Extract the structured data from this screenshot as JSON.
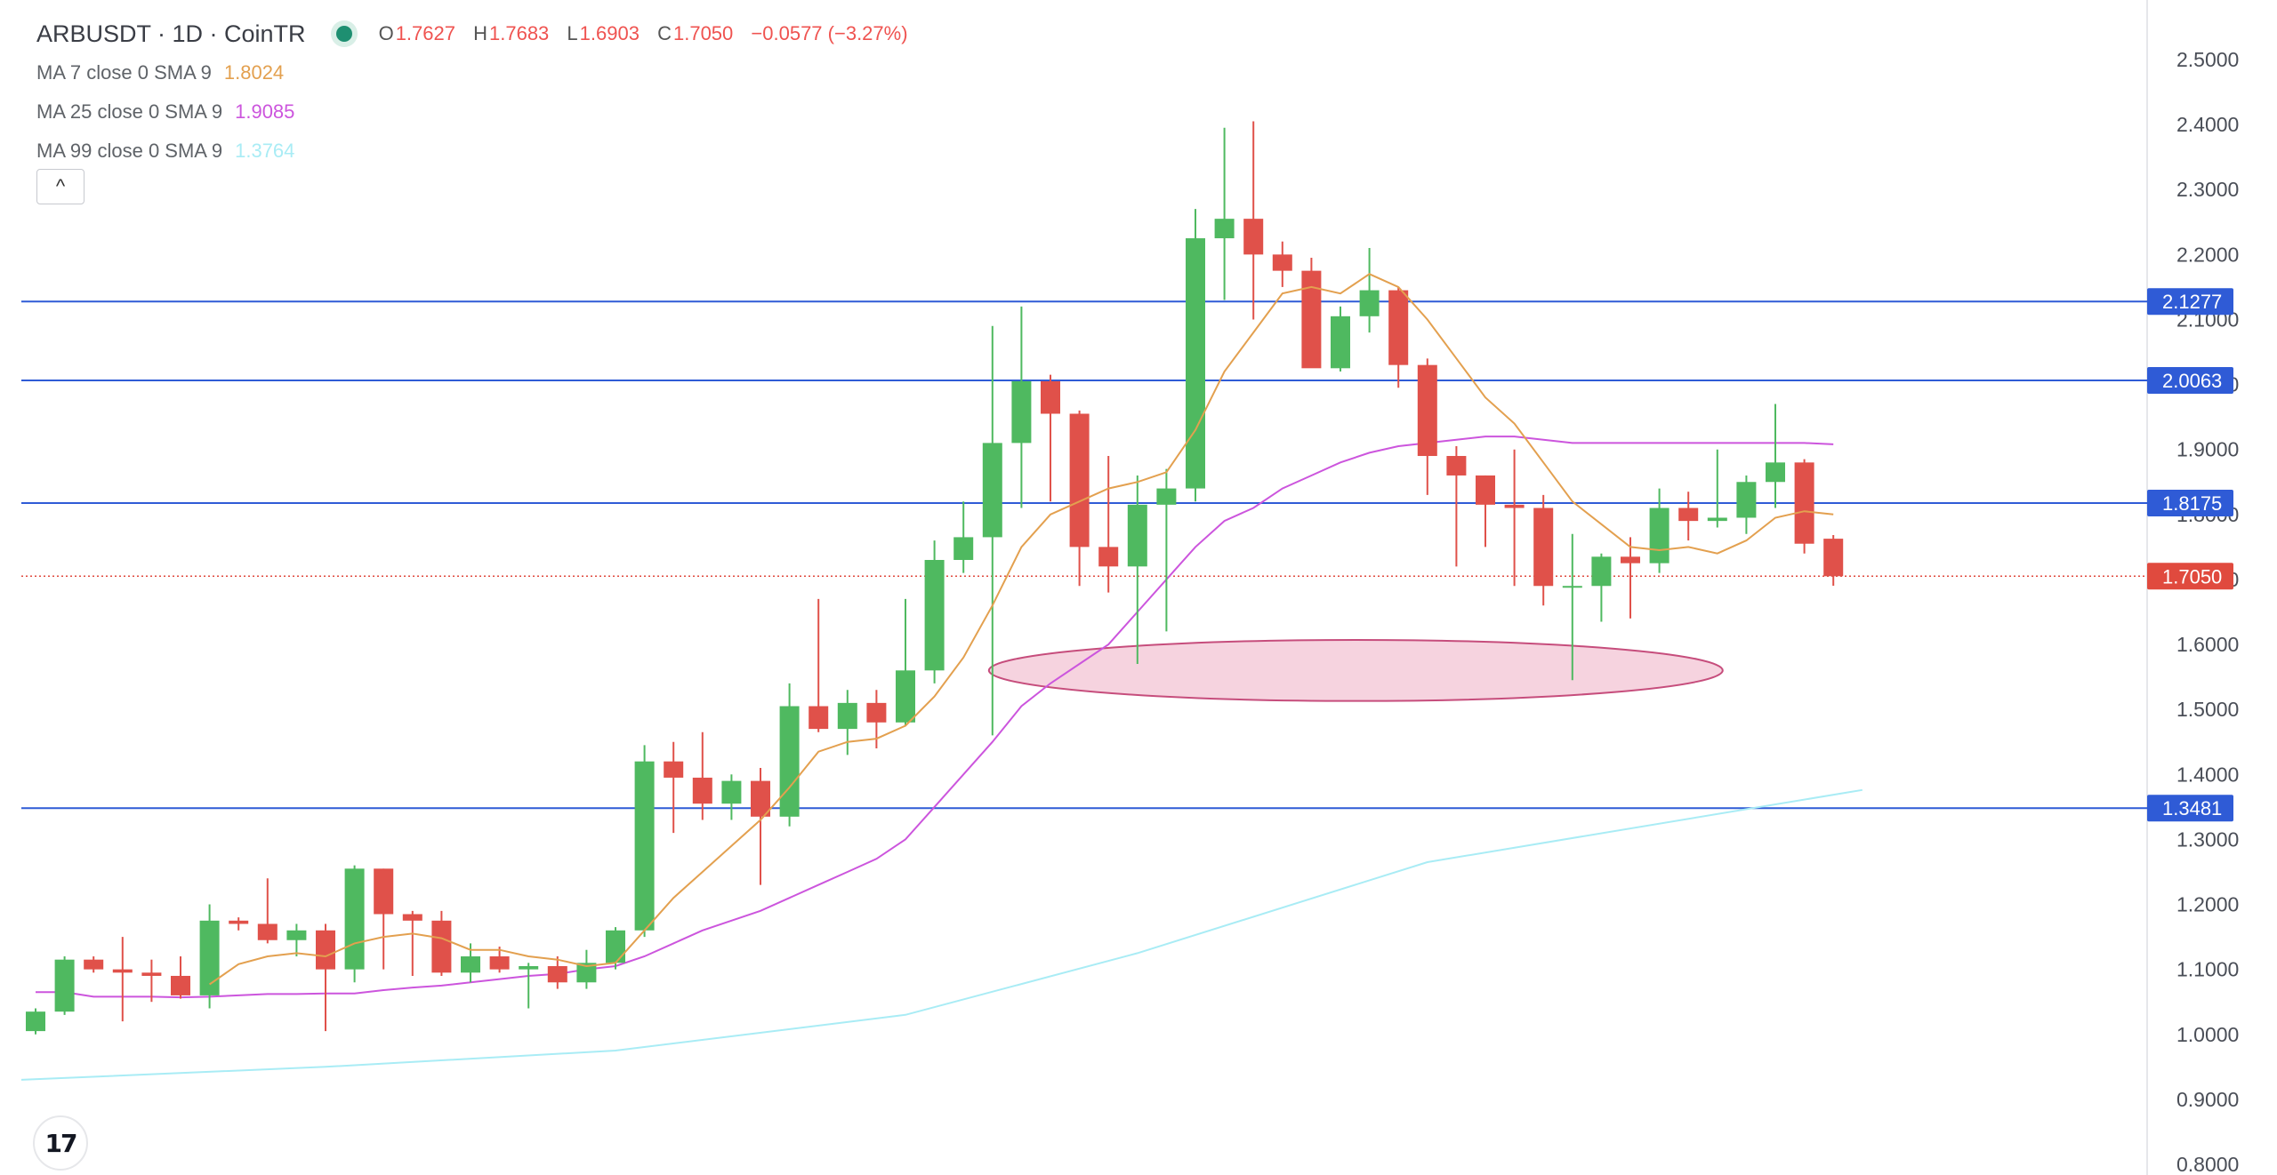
{
  "header": {
    "symbol": "ARBUSDT · 1D · CoinTR",
    "ohlc": {
      "o": "1.7627",
      "h": "1.7683",
      "l": "1.6903",
      "c": "1.7050",
      "change": "−0.0577 (−3.27%)"
    }
  },
  "indicators": [
    {
      "label": "MA 7 close 0 SMA 9",
      "value": "1.8024",
      "color": "#e3a04f"
    },
    {
      "label": "MA 25 close 0 SMA 9",
      "value": "1.9085",
      "color": "#cc55dd"
    },
    {
      "label": "MA 99 close 0 SMA 9",
      "value": "1.3764",
      "color": "#a9ecf5"
    }
  ],
  "colors": {
    "up": "#4fb960",
    "down": "#e0514a",
    "hline": "#2f5bd6",
    "price": "#e04a3e",
    "ellipse_fill": "#f6d3df",
    "ellipse_stroke": "#c64d7c"
  },
  "icons": {
    "collapse": "chevron-up-icon",
    "logo": "tradingview-logo-icon"
  },
  "collapse_glyph": "^",
  "logo_text": "17",
  "chart_data": {
    "type": "candlestick",
    "y_range": [
      0.8,
      2.5
    ],
    "y_ticks": [
      "2.5000",
      "2.4000",
      "2.3000",
      "2.2000",
      "2.1000",
      "2.0000",
      "1.9000",
      "1.8000",
      "1.7000",
      "1.6000",
      "1.5000",
      "1.4000",
      "1.3000",
      "1.2000",
      "1.1000",
      "1.0000",
      "0.9000",
      "0.8000"
    ],
    "candles": [
      [
        1.005,
        1.04,
        1.0,
        1.035
      ],
      [
        1.035,
        1.12,
        1.03,
        1.115
      ],
      [
        1.115,
        1.12,
        1.095,
        1.1
      ],
      [
        1.1,
        1.15,
        1.02,
        1.095
      ],
      [
        1.095,
        1.115,
        1.05,
        1.09
      ],
      [
        1.09,
        1.12,
        1.055,
        1.06
      ],
      [
        1.06,
        1.2,
        1.04,
        1.175
      ],
      [
        1.175,
        1.18,
        1.16,
        1.17
      ],
      [
        1.17,
        1.24,
        1.14,
        1.145
      ],
      [
        1.145,
        1.17,
        1.12,
        1.16
      ],
      [
        1.16,
        1.17,
        1.005,
        1.1
      ],
      [
        1.1,
        1.26,
        1.08,
        1.255
      ],
      [
        1.255,
        1.255,
        1.1,
        1.185
      ],
      [
        1.185,
        1.19,
        1.09,
        1.175
      ],
      [
        1.175,
        1.19,
        1.09,
        1.095
      ],
      [
        1.095,
        1.14,
        1.08,
        1.12
      ],
      [
        1.12,
        1.135,
        1.095,
        1.1
      ],
      [
        1.1,
        1.11,
        1.04,
        1.105
      ],
      [
        1.105,
        1.12,
        1.07,
        1.08
      ],
      [
        1.08,
        1.13,
        1.07,
        1.11
      ],
      [
        1.11,
        1.165,
        1.1,
        1.16
      ],
      [
        1.16,
        1.445,
        1.15,
        1.42
      ],
      [
        1.42,
        1.45,
        1.31,
        1.395
      ],
      [
        1.395,
        1.465,
        1.33,
        1.355
      ],
      [
        1.355,
        1.4,
        1.33,
        1.39
      ],
      [
        1.39,
        1.41,
        1.23,
        1.335
      ],
      [
        1.335,
        1.54,
        1.32,
        1.505
      ],
      [
        1.505,
        1.67,
        1.465,
        1.47
      ],
      [
        1.47,
        1.53,
        1.43,
        1.51
      ],
      [
        1.51,
        1.53,
        1.44,
        1.48
      ],
      [
        1.48,
        1.67,
        1.475,
        1.56
      ],
      [
        1.56,
        1.76,
        1.54,
        1.73
      ],
      [
        1.73,
        1.82,
        1.71,
        1.765
      ],
      [
        1.765,
        2.09,
        1.46,
        1.91
      ],
      [
        1.91,
        2.12,
        1.81,
        2.005
      ],
      [
        2.005,
        2.015,
        1.82,
        1.955
      ],
      [
        1.955,
        1.96,
        1.69,
        1.75
      ],
      [
        1.75,
        1.89,
        1.68,
        1.72
      ],
      [
        1.72,
        1.86,
        1.57,
        1.815
      ],
      [
        1.815,
        1.87,
        1.62,
        1.84
      ],
      [
        1.84,
        2.27,
        1.82,
        2.225
      ],
      [
        2.225,
        2.395,
        2.13,
        2.255
      ],
      [
        2.255,
        2.405,
        2.1,
        2.2
      ],
      [
        2.2,
        2.22,
        2.15,
        2.175
      ],
      [
        2.175,
        2.195,
        2.03,
        2.025
      ],
      [
        2.025,
        2.12,
        2.02,
        2.105
      ],
      [
        2.105,
        2.21,
        2.08,
        2.145
      ],
      [
        2.145,
        2.15,
        1.995,
        2.03
      ],
      [
        2.03,
        2.04,
        1.83,
        1.89
      ],
      [
        1.89,
        1.905,
        1.72,
        1.86
      ],
      [
        1.86,
        1.86,
        1.75,
        1.815
      ],
      [
        1.815,
        1.9,
        1.69,
        1.81
      ],
      [
        1.81,
        1.83,
        1.66,
        1.69
      ],
      [
        1.69,
        1.77,
        1.545,
        1.69
      ],
      [
        1.69,
        1.74,
        1.635,
        1.735
      ],
      [
        1.735,
        1.765,
        1.64,
        1.725
      ],
      [
        1.725,
        1.84,
        1.71,
        1.81
      ],
      [
        1.81,
        1.835,
        1.76,
        1.79
      ],
      [
        1.79,
        1.9,
        1.78,
        1.795
      ],
      [
        1.795,
        1.86,
        1.77,
        1.85
      ],
      [
        1.85,
        1.97,
        1.81,
        1.88
      ],
      [
        1.88,
        1.885,
        1.74,
        1.755
      ],
      [
        1.7627,
        1.7683,
        1.6903,
        1.705
      ]
    ],
    "ma7": [
      null,
      null,
      null,
      null,
      null,
      null,
      1.077,
      1.108,
      1.12,
      1.125,
      1.12,
      1.14,
      1.15,
      1.155,
      1.148,
      1.13,
      1.13,
      1.12,
      1.115,
      1.105,
      1.11,
      1.16,
      1.21,
      1.25,
      1.29,
      1.33,
      1.38,
      1.435,
      1.45,
      1.455,
      1.475,
      1.52,
      1.58,
      1.66,
      1.75,
      1.8,
      1.82,
      1.84,
      1.85,
      1.865,
      1.93,
      2.02,
      2.08,
      2.14,
      2.15,
      2.14,
      2.17,
      2.15,
      2.1,
      2.04,
      1.98,
      1.94,
      1.88,
      1.82,
      1.785,
      1.75,
      1.745,
      1.75,
      1.74,
      1.76,
      1.795,
      1.805,
      1.8
    ],
    "ma25": [
      1.065,
      1.065,
      1.058,
      1.058,
      1.058,
      1.057,
      1.058,
      1.06,
      1.062,
      1.062,
      1.063,
      1.063,
      1.068,
      1.072,
      1.075,
      1.08,
      1.085,
      1.09,
      1.093,
      1.1,
      1.105,
      1.12,
      1.14,
      1.16,
      1.175,
      1.19,
      1.21,
      1.23,
      1.25,
      1.27,
      1.3,
      1.35,
      1.4,
      1.45,
      1.505,
      1.54,
      1.57,
      1.6,
      1.65,
      1.7,
      1.75,
      1.79,
      1.81,
      1.84,
      1.86,
      1.88,
      1.895,
      1.905,
      1.91,
      1.915,
      1.92,
      1.92,
      1.915,
      1.91,
      1.91,
      1.91,
      1.91,
      1.91,
      1.91,
      1.91,
      1.91,
      1.91,
      1.908
    ],
    "ma99_points": [
      [
        0,
        0.93
      ],
      [
        10,
        0.95
      ],
      [
        20,
        0.975
      ],
      [
        30,
        1.03
      ],
      [
        38,
        1.125
      ],
      [
        48,
        1.265
      ],
      [
        63,
        1.376
      ]
    ],
    "horizontal_levels": [
      "2.1277",
      "2.0063",
      "1.8175",
      "1.3481"
    ],
    "current_price": "1.7050",
    "highlight_zone": {
      "from_index": 33,
      "to_index": 58,
      "center": 1.56,
      "half_height": 0.047
    }
  }
}
